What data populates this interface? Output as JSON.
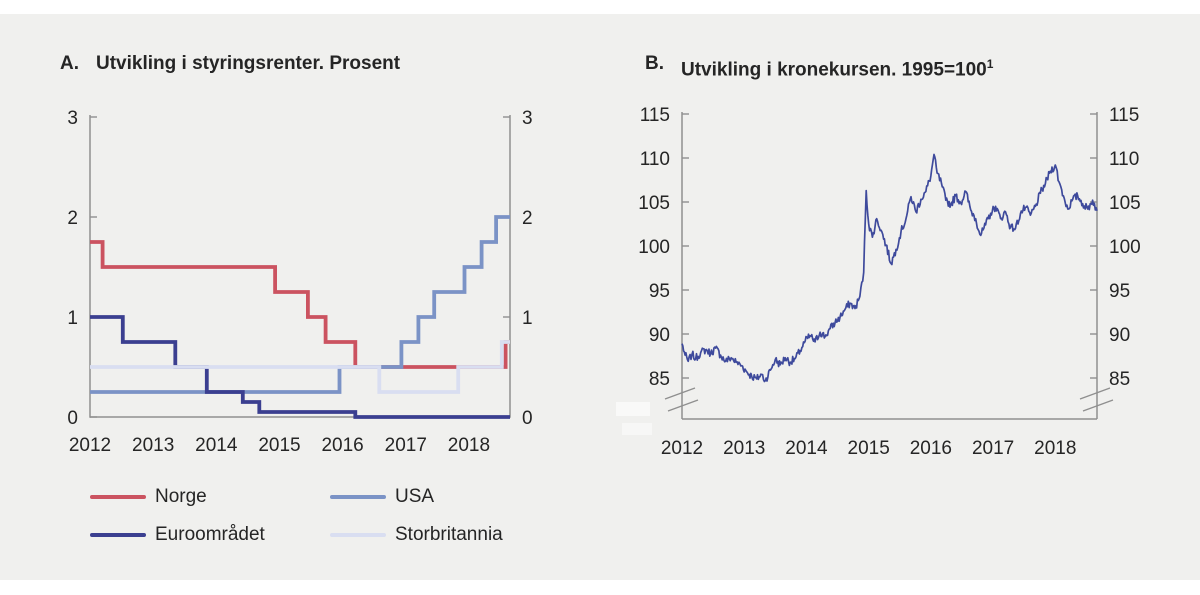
{
  "page": {
    "panel_background": "#f0f0ee",
    "page_background": "#ffffff",
    "axis_color": "#8f8f8f",
    "text_color": "#252525"
  },
  "chart_data": [
    {
      "type": "line",
      "step": true,
      "label": "A.",
      "title": "Utvikling i styringsrenter. Prosent",
      "xlabel": "",
      "ylabel": "",
      "ylim": [
        0,
        3
      ],
      "y_ticks": [
        0,
        1,
        2,
        3
      ],
      "x_ticks": [
        2012,
        2013,
        2014,
        2015,
        2016,
        2017,
        2018
      ],
      "xlim": [
        2012,
        2018.65
      ],
      "grid": false,
      "legend_position": "below",
      "series": [
        {
          "name": "Norge",
          "color": "#cb5360",
          "points": [
            [
              2012.0,
              1.75
            ],
            [
              2012.2,
              1.5
            ],
            [
              2014.93,
              1.25
            ],
            [
              2015.45,
              1.0
            ],
            [
              2015.73,
              0.75
            ],
            [
              2016.2,
              0.5
            ],
            [
              2018.58,
              0.75
            ]
          ]
        },
        {
          "name": "USA",
          "color": "#7b93c6",
          "points": [
            [
              2012.0,
              0.25
            ],
            [
              2015.95,
              0.5
            ],
            [
              2016.93,
              0.75
            ],
            [
              2017.2,
              1.0
            ],
            [
              2017.45,
              1.25
            ],
            [
              2017.93,
              1.5
            ],
            [
              2018.2,
              1.75
            ],
            [
              2018.43,
              2.0
            ]
          ]
        },
        {
          "name": "Euroområdet",
          "color": "#3b3f90",
          "points": [
            [
              2012.0,
              1.0
            ],
            [
              2012.52,
              0.75
            ],
            [
              2013.35,
              0.5
            ],
            [
              2013.85,
              0.25
            ],
            [
              2014.42,
              0.15
            ],
            [
              2014.68,
              0.05
            ],
            [
              2016.2,
              0.0
            ]
          ]
        },
        {
          "name": "Storbritannia",
          "color": "#d9def1",
          "points": [
            [
              2012.0,
              0.5
            ],
            [
              2016.58,
              0.25
            ],
            [
              2017.83,
              0.5
            ],
            [
              2018.52,
              0.75
            ]
          ]
        }
      ]
    },
    {
      "type": "line",
      "label": "B.",
      "title": "Utvikling i kronekursen. 1995=100",
      "title_sup": "1",
      "xlabel": "",
      "ylabel": "",
      "ylim": [
        84,
        115
      ],
      "y_ticks": [
        85,
        90,
        95,
        100,
        105,
        110,
        115
      ],
      "x_ticks": [
        2012,
        2013,
        2014,
        2015,
        2016,
        2017,
        2018
      ],
      "xlim": [
        2012,
        2018.67
      ],
      "axis_break": true,
      "grid": false,
      "series": [
        {
          "name": "Kronekursen",
          "color": "#3e4a9c",
          "points": [
            [
              2012.0,
              88.9
            ],
            [
              2012.05,
              87.6
            ],
            [
              2012.1,
              86.9
            ],
            [
              2012.16,
              87.7
            ],
            [
              2012.22,
              87.2
            ],
            [
              2012.3,
              87.9
            ],
            [
              2012.38,
              88.2
            ],
            [
              2012.46,
              87.8
            ],
            [
              2012.54,
              88.4
            ],
            [
              2012.62,
              87.6
            ],
            [
              2012.7,
              86.9
            ],
            [
              2012.79,
              87.3
            ],
            [
              2012.87,
              86.8
            ],
            [
              2012.96,
              86.4
            ],
            [
              2013.04,
              85.7
            ],
            [
              2013.12,
              85.2
            ],
            [
              2013.2,
              84.9
            ],
            [
              2013.28,
              85.4
            ],
            [
              2013.34,
              84.7
            ],
            [
              2013.42,
              85.9
            ],
            [
              2013.5,
              87.1
            ],
            [
              2013.58,
              86.5
            ],
            [
              2013.66,
              87.3
            ],
            [
              2013.74,
              86.8
            ],
            [
              2013.82,
              87.2
            ],
            [
              2013.9,
              88.1
            ],
            [
              2013.98,
              89.2
            ],
            [
              2014.06,
              89.8
            ],
            [
              2014.14,
              89.1
            ],
            [
              2014.22,
              90.2
            ],
            [
              2014.3,
              89.7
            ],
            [
              2014.38,
              90.6
            ],
            [
              2014.46,
              91.3
            ],
            [
              2014.54,
              91.9
            ],
            [
              2014.62,
              92.8
            ],
            [
              2014.7,
              93.5
            ],
            [
              2014.78,
              92.9
            ],
            [
              2014.86,
              94.3
            ],
            [
              2014.92,
              97.0
            ],
            [
              2014.96,
              106.3
            ],
            [
              2015.0,
              102.5
            ],
            [
              2015.06,
              101.0
            ],
            [
              2015.13,
              103.1
            ],
            [
              2015.2,
              101.8
            ],
            [
              2015.28,
              100.1
            ],
            [
              2015.36,
              98.0
            ],
            [
              2015.44,
              99.6
            ],
            [
              2015.52,
              101.6
            ],
            [
              2015.6,
              103.1
            ],
            [
              2015.68,
              105.6
            ],
            [
              2015.76,
              103.9
            ],
            [
              2015.84,
              105.3
            ],
            [
              2015.92,
              106.2
            ],
            [
              2016.0,
              108.0
            ],
            [
              2016.05,
              110.4
            ],
            [
              2016.1,
              108.3
            ],
            [
              2016.17,
              107.1
            ],
            [
              2016.24,
              105.2
            ],
            [
              2016.32,
              104.7
            ],
            [
              2016.4,
              105.7
            ],
            [
              2016.48,
              104.9
            ],
            [
              2016.56,
              106.2
            ],
            [
              2016.64,
              104.1
            ],
            [
              2016.72,
              103.1
            ],
            [
              2016.8,
              101.2
            ],
            [
              2016.88,
              102.4
            ],
            [
              2016.96,
              103.7
            ],
            [
              2017.04,
              104.5
            ],
            [
              2017.12,
              103.1
            ],
            [
              2017.2,
              103.9
            ],
            [
              2017.28,
              102.1
            ],
            [
              2017.36,
              102.0
            ],
            [
              2017.44,
              103.7
            ],
            [
              2017.52,
              104.4
            ],
            [
              2017.6,
              103.5
            ],
            [
              2017.68,
              104.5
            ],
            [
              2017.76,
              106.0
            ],
            [
              2017.84,
              107.1
            ],
            [
              2017.92,
              108.5
            ],
            [
              2018.0,
              109.2
            ],
            [
              2018.06,
              107.3
            ],
            [
              2018.13,
              105.7
            ],
            [
              2018.2,
              104.2
            ],
            [
              2018.28,
              105.3
            ],
            [
              2018.36,
              105.7
            ],
            [
              2018.44,
              104.8
            ],
            [
              2018.52,
              104.2
            ],
            [
              2018.6,
              105.2
            ],
            [
              2018.67,
              104.0
            ]
          ]
        }
      ]
    }
  ]
}
